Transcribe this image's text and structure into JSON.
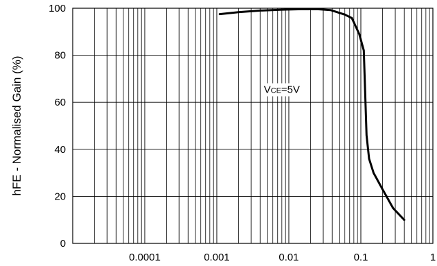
{
  "chart_data": {
    "type": "line",
    "title": "",
    "xlabel": "",
    "ylabel": "hFE - Normalised Gain (%)",
    "x_scale": "log",
    "xlim": [
      1e-05,
      1
    ],
    "ylim": [
      0,
      100
    ],
    "x_ticks": [
      {
        "value": 0.0001,
        "label": "0.0001"
      },
      {
        "value": 0.001,
        "label": "0.001"
      },
      {
        "value": 0.01,
        "label": "0.01"
      },
      {
        "value": 0.1,
        "label": "0.1"
      },
      {
        "value": 1,
        "label": "1"
      }
    ],
    "y_ticks": [
      {
        "value": 0,
        "label": "0"
      },
      {
        "value": 20,
        "label": "20"
      },
      {
        "value": 40,
        "label": "40"
      },
      {
        "value": 60,
        "label": "60"
      },
      {
        "value": 80,
        "label": "80"
      },
      {
        "value": 100,
        "label": "100"
      }
    ],
    "grid": true,
    "series": [
      {
        "color": "#000000",
        "x": [
          0.0011,
          0.002,
          0.004,
          0.008,
          0.015,
          0.025,
          0.038,
          0.06,
          0.075,
          0.095,
          0.11,
          0.12,
          0.13,
          0.15,
          0.2,
          0.28,
          0.4
        ],
        "y": [
          97.5,
          98.3,
          99.0,
          99.4,
          99.6,
          99.6,
          99.2,
          97.3,
          95.8,
          89,
          82,
          46,
          36,
          30,
          23,
          15,
          10
        ]
      }
    ],
    "annotations": [
      {
        "label_main": "V",
        "label_sub": "CE",
        "label_rest": "=5V",
        "x": 0.008,
        "y": 64
      }
    ]
  }
}
